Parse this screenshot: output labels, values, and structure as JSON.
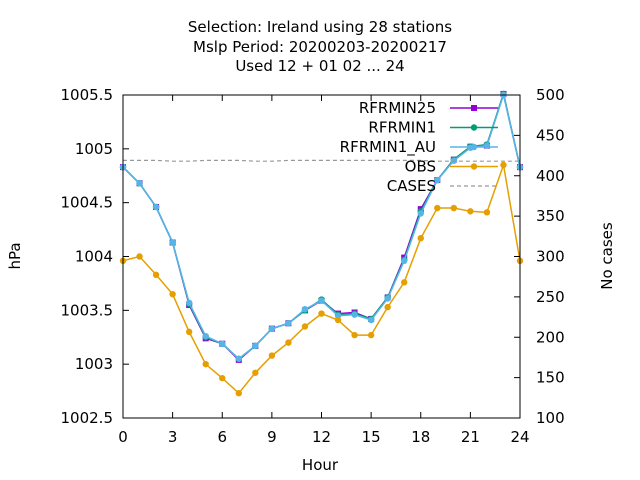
{
  "chart_data": {
    "type": "line",
    "title": [
      "Selection: Ireland using    28 stations",
      "Mslp   Period: 20200203-20200217",
      "Used  12 + 01 02 ... 24"
    ],
    "xlabel": "Hour",
    "ylabel": "hPa",
    "y2label": "No cases",
    "xlim": [
      0,
      24
    ],
    "ylim": [
      1002.5,
      1005.5
    ],
    "y2lim": [
      100,
      500
    ],
    "xticks": [
      "0",
      "3",
      "6",
      "9",
      "12",
      "15",
      "18",
      "21",
      "24"
    ],
    "yticks": [
      "1002.5",
      "1003",
      "1003.5",
      "1004",
      "1004.5",
      "1005",
      "1005.5"
    ],
    "y2ticks": [
      "100",
      "150",
      "200",
      "250",
      "300",
      "350",
      "400",
      "450",
      "500"
    ],
    "x": [
      0,
      1,
      2,
      3,
      4,
      5,
      6,
      7,
      8,
      9,
      10,
      11,
      12,
      13,
      14,
      15,
      16,
      17,
      18,
      19,
      20,
      21,
      22,
      23,
      24
    ],
    "legend_position": "top-right",
    "series": [
      {
        "name": "RFRMIN25",
        "color": "#9400d3",
        "marker": "square",
        "axis": "left",
        "values": [
          1004.83,
          1004.68,
          1004.46,
          1004.13,
          1003.55,
          1003.24,
          1003.19,
          1003.04,
          1003.17,
          1003.33,
          1003.38,
          1003.5,
          1003.59,
          1003.47,
          1003.48,
          1003.42,
          1003.62,
          1003.99,
          1004.44,
          1004.71,
          1004.9,
          1005.02,
          1005.03,
          1005.51,
          1004.83
        ]
      },
      {
        "name": "RFRMIN1",
        "color": "#009e73",
        "marker": "circle",
        "axis": "left",
        "values": [
          1004.83,
          1004.68,
          1004.46,
          1004.13,
          1003.56,
          1003.25,
          1003.19,
          1003.05,
          1003.17,
          1003.33,
          1003.38,
          1003.5,
          1003.6,
          1003.46,
          1003.47,
          1003.42,
          1003.62,
          1003.97,
          1004.42,
          1004.71,
          1004.9,
          1005.02,
          1005.04,
          1005.51,
          1004.83
        ]
      },
      {
        "name": "RFRMIN1_AU",
        "color": "#56b4e9",
        "marker": "circle",
        "axis": "left",
        "values": [
          1004.83,
          1004.68,
          1004.46,
          1004.13,
          1003.57,
          1003.26,
          1003.19,
          1003.05,
          1003.17,
          1003.33,
          1003.38,
          1003.51,
          1003.59,
          1003.45,
          1003.46,
          1003.41,
          1003.61,
          1003.96,
          1004.4,
          1004.71,
          1004.89,
          1005.01,
          1005.03,
          1005.5,
          1004.83
        ]
      },
      {
        "name": "OBS",
        "color": "#e69f00",
        "marker": "circle",
        "axis": "left",
        "values": [
          1003.96,
          1004.0,
          1003.83,
          1003.65,
          1003.3,
          1003.0,
          1002.87,
          1002.73,
          1002.92,
          1003.08,
          1003.2,
          1003.35,
          1003.47,
          1003.41,
          1003.27,
          1003.27,
          1003.53,
          1003.76,
          1004.17,
          1004.45,
          1004.45,
          1004.42,
          1004.41,
          1004.85,
          1003.96
        ]
      },
      {
        "name": "CASES",
        "color": "#999999",
        "marker": "none",
        "dashed": true,
        "axis": "right",
        "values": [
          419,
          419,
          419,
          418,
          418,
          419,
          419,
          419,
          418,
          418,
          419,
          419,
          419,
          419,
          419,
          419,
          419,
          419,
          419,
          418,
          418,
          418,
          418,
          418,
          418
        ]
      }
    ]
  }
}
